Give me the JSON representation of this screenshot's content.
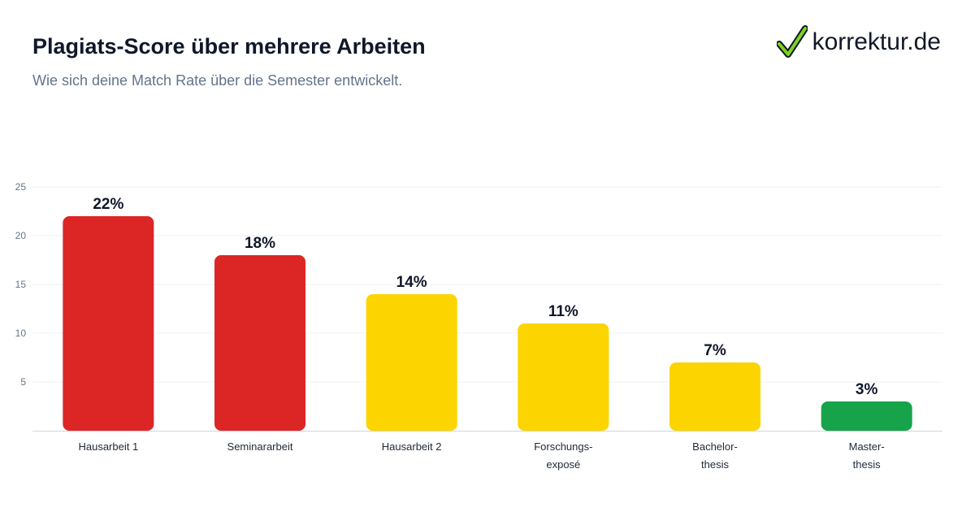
{
  "header": {
    "title": "Plagiats-Score über mehrere Arbeiten",
    "subtitle": "Wie sich deine Match Rate über die Semester entwickelt."
  },
  "brand": {
    "name": "korrektur.de",
    "icon": "checkmark-icon",
    "icon_color": "#7ed321"
  },
  "colors": {
    "high": "#dc2626",
    "medium": "#fcd500",
    "low": "#16a34a",
    "grid": "#eef1f5",
    "axis": "#d1d5db"
  },
  "chart_data": {
    "type": "bar",
    "categories": [
      [
        "Hausarbeit 1"
      ],
      [
        "Seminararbeit"
      ],
      [
        "Hausarbeit 2"
      ],
      [
        "Forschungs-",
        "exposé"
      ],
      [
        "Bachelor-",
        "thesis"
      ],
      [
        "Master-",
        "thesis"
      ]
    ],
    "values": [
      22,
      18,
      14,
      11,
      7,
      3
    ],
    "value_labels": [
      "22%",
      "18%",
      "14%",
      "11%",
      "7%",
      "3%"
    ],
    "bar_colors": [
      "#dc2626",
      "#dc2626",
      "#fcd500",
      "#fcd500",
      "#fcd500",
      "#16a34a"
    ],
    "yticks": [
      5,
      10,
      15,
      20,
      25
    ],
    "ylim": [
      0,
      25
    ],
    "grid": true,
    "legend": false
  }
}
